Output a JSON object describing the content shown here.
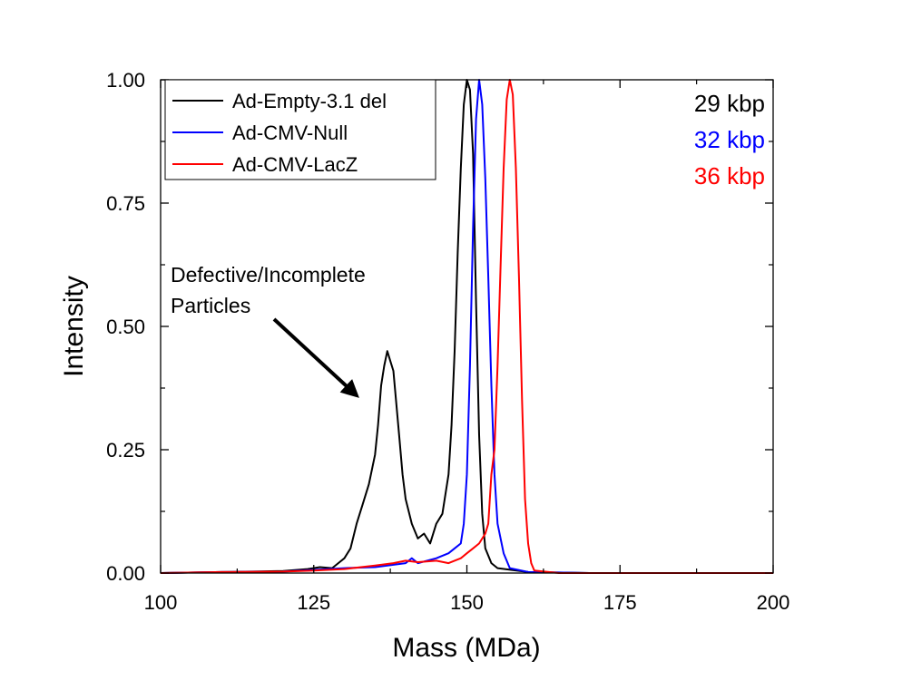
{
  "chart_data": {
    "type": "line",
    "xlabel": "Mass (MDa)",
    "ylabel": "Intensity",
    "xlim": [
      100,
      200
    ],
    "ylim": [
      0,
      1.0
    ],
    "x_ticks": [
      "100",
      "125",
      "150",
      "175",
      "200"
    ],
    "y_ticks": [
      "0.00",
      "0.25",
      "0.50",
      "0.75",
      "1.00"
    ],
    "grid": false,
    "legend_position": "top-left",
    "series": [
      {
        "name": "Ad-Empty-3.1 del",
        "color": "#000000",
        "points": [
          [
            100,
            0
          ],
          [
            110,
            0.002
          ],
          [
            115,
            0.003
          ],
          [
            120,
            0.004
          ],
          [
            124,
            0.008
          ],
          [
            126,
            0.012
          ],
          [
            128,
            0.01
          ],
          [
            129,
            0.02
          ],
          [
            130,
            0.03
          ],
          [
            131,
            0.05
          ],
          [
            132,
            0.1
          ],
          [
            133,
            0.14
          ],
          [
            134,
            0.18
          ],
          [
            135,
            0.24
          ],
          [
            135.5,
            0.3
          ],
          [
            136,
            0.38
          ],
          [
            136.5,
            0.42
          ],
          [
            137,
            0.45
          ],
          [
            137.5,
            0.43
          ],
          [
            138,
            0.41
          ],
          [
            138.5,
            0.34
          ],
          [
            139,
            0.27
          ],
          [
            139.5,
            0.2
          ],
          [
            140,
            0.15
          ],
          [
            141,
            0.1
          ],
          [
            142,
            0.07
          ],
          [
            143,
            0.08
          ],
          [
            144,
            0.06
          ],
          [
            145,
            0.1
          ],
          [
            146,
            0.12
          ],
          [
            147,
            0.2
          ],
          [
            147.5,
            0.3
          ],
          [
            148,
            0.45
          ],
          [
            148.5,
            0.65
          ],
          [
            149,
            0.82
          ],
          [
            149.5,
            0.95
          ],
          [
            150,
            1.0
          ],
          [
            150.5,
            0.98
          ],
          [
            151,
            0.85
          ],
          [
            151.5,
            0.55
          ],
          [
            152,
            0.28
          ],
          [
            152.5,
            0.12
          ],
          [
            153,
            0.05
          ],
          [
            154,
            0.02
          ],
          [
            155,
            0.01
          ],
          [
            160,
            0.002
          ],
          [
            170,
            0
          ],
          [
            200,
            0
          ]
        ]
      },
      {
        "name": "Ad-CMV-Null",
        "color": "#0000ff",
        "points": [
          [
            100,
            0
          ],
          [
            110,
            0.002
          ],
          [
            120,
            0.003
          ],
          [
            130,
            0.01
          ],
          [
            135,
            0.012
          ],
          [
            140,
            0.02
          ],
          [
            141,
            0.03
          ],
          [
            142,
            0.02
          ],
          [
            145,
            0.03
          ],
          [
            147,
            0.04
          ],
          [
            148,
            0.05
          ],
          [
            149,
            0.06
          ],
          [
            149.5,
            0.1
          ],
          [
            150,
            0.2
          ],
          [
            150.5,
            0.42
          ],
          [
            151,
            0.7
          ],
          [
            151.5,
            0.92
          ],
          [
            152,
            1.0
          ],
          [
            152.5,
            0.95
          ],
          [
            153,
            0.8
          ],
          [
            153.5,
            0.6
          ],
          [
            154,
            0.38
          ],
          [
            154.5,
            0.2
          ],
          [
            155,
            0.1
          ],
          [
            156,
            0.04
          ],
          [
            157,
            0.01
          ],
          [
            160,
            0.002
          ],
          [
            170,
            0
          ],
          [
            200,
            0
          ]
        ]
      },
      {
        "name": "Ad-CMV-LacZ",
        "color": "#ff0000",
        "points": [
          [
            100,
            0
          ],
          [
            110,
            0.002
          ],
          [
            120,
            0.003
          ],
          [
            125,
            0.005
          ],
          [
            130,
            0.008
          ],
          [
            135,
            0.015
          ],
          [
            138,
            0.02
          ],
          [
            140,
            0.025
          ],
          [
            142,
            0.022
          ],
          [
            145,
            0.025
          ],
          [
            147,
            0.02
          ],
          [
            149,
            0.03
          ],
          [
            150,
            0.04
          ],
          [
            151,
            0.05
          ],
          [
            152,
            0.06
          ],
          [
            153,
            0.08
          ],
          [
            153.5,
            0.1
          ],
          [
            154,
            0.2
          ],
          [
            154.5,
            0.25
          ],
          [
            155,
            0.42
          ],
          [
            155.5,
            0.62
          ],
          [
            156,
            0.82
          ],
          [
            156.5,
            0.96
          ],
          [
            157,
            1.0
          ],
          [
            157.5,
            0.97
          ],
          [
            158,
            0.82
          ],
          [
            158.5,
            0.6
          ],
          [
            159,
            0.35
          ],
          [
            159.5,
            0.15
          ],
          [
            160,
            0.06
          ],
          [
            160.5,
            0.02
          ],
          [
            161,
            0.005
          ],
          [
            165,
            0
          ],
          [
            200,
            0
          ]
        ]
      }
    ],
    "annotations": [
      {
        "text": "29 kbp",
        "color": "#000000"
      },
      {
        "text": "32 kbp",
        "color": "#0000ff"
      },
      {
        "text": "36 kbp",
        "color": "#ff0000"
      }
    ],
    "arrow_label": [
      "Defective/Incomplete",
      "Particles"
    ],
    "arrow_target": [
      132,
      0.36
    ]
  }
}
